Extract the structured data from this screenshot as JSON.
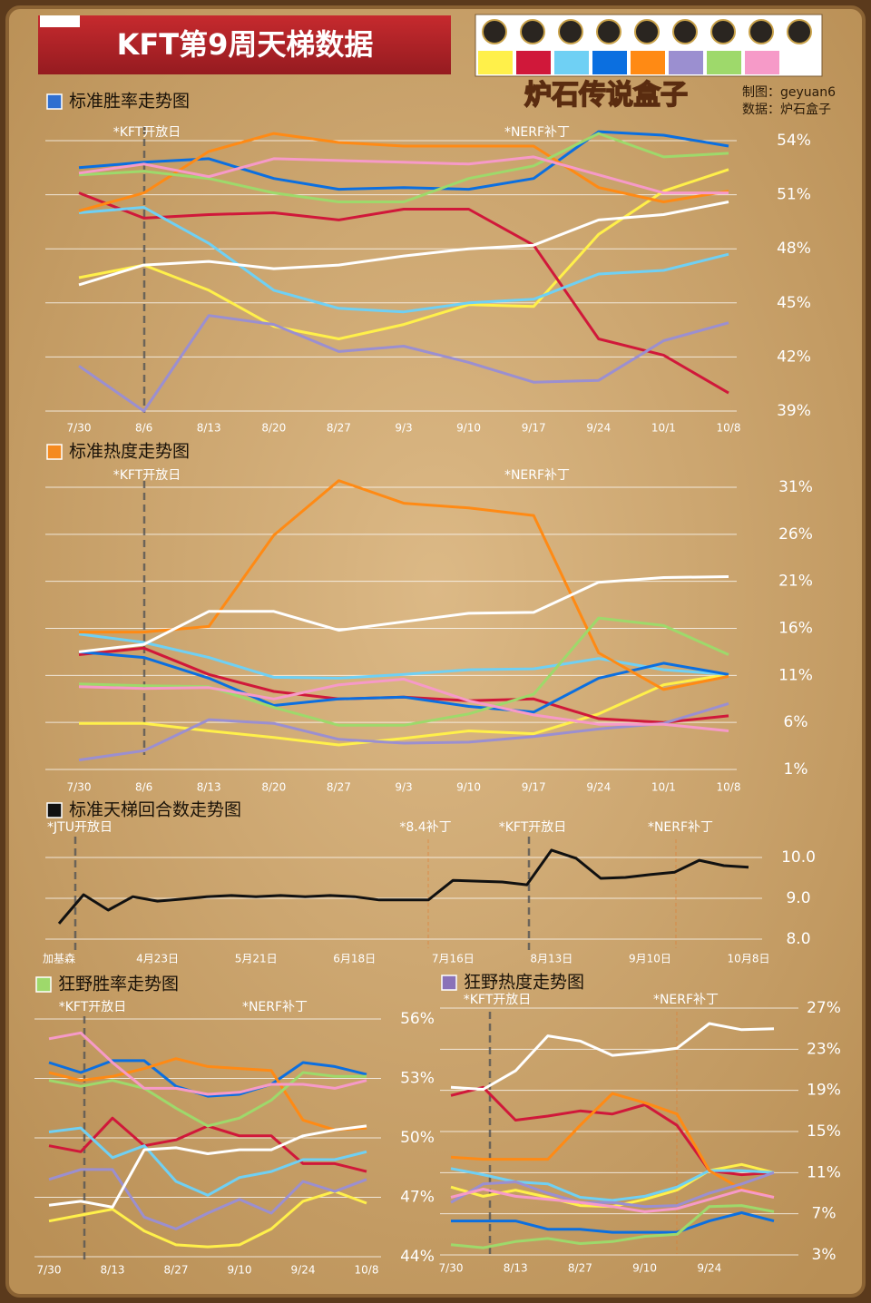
{
  "header": {
    "title": "KFT第9周天梯数据",
    "credits": [
      "制图：geyuan6",
      "数据：炉石盒子"
    ],
    "logo": "炉石传说盒子"
  },
  "chart_data": [
    {
      "type": "line",
      "title": "标准胜率走势图",
      "title_color": "#2f6fd0",
      "annotations": [
        "*KFT开放日",
        "*NERF补丁"
      ],
      "categories": [
        "7/30",
        "8/6",
        "8/13",
        "8/20",
        "8/27",
        "9/3",
        "9/10",
        "9/17",
        "9/24",
        "10/1",
        "10/8"
      ],
      "ylim": [
        39,
        54
      ],
      "yticks": [
        {
          "value": 39,
          "label": "39%"
        },
        {
          "value": 42,
          "label": "42%"
        },
        {
          "value": 45,
          "label": "45%"
        },
        {
          "value": 48,
          "label": "48%"
        },
        {
          "value": 51,
          "label": "51%"
        },
        {
          "value": 54,
          "label": "54%"
        }
      ],
      "grid": true,
      "series": [
        {
          "color": "#fff04a",
          "values": [
            46.4,
            47.1,
            45.7,
            43.7,
            43.0,
            43.8,
            44.9,
            44.8,
            48.8,
            51.2,
            52.4
          ]
        },
        {
          "color": "#d0183a",
          "values": [
            51.1,
            49.7,
            49.9,
            50.0,
            49.6,
            50.2,
            50.2,
            48.2,
            43.0,
            42.1,
            40.0
          ]
        },
        {
          "color": "#6fd0f4",
          "values": [
            50.0,
            50.3,
            48.3,
            45.7,
            44.7,
            44.5,
            45.0,
            45.2,
            46.6,
            46.8,
            47.7
          ]
        },
        {
          "color": "#0b6fe0",
          "values": [
            52.5,
            52.8,
            53.0,
            51.9,
            51.3,
            51.4,
            51.3,
            51.9,
            54.5,
            54.3,
            53.7
          ]
        },
        {
          "color": "#ff8a14",
          "values": [
            50.1,
            51.1,
            53.4,
            54.4,
            53.9,
            53.7,
            53.7,
            53.7,
            51.4,
            50.6,
            51.2
          ]
        },
        {
          "color": "#9b8fd0",
          "values": [
            41.5,
            39.0,
            44.3,
            43.8,
            42.3,
            42.6,
            41.7,
            40.6,
            40.7,
            42.9,
            43.9
          ]
        },
        {
          "color": "#9ed96b",
          "values": [
            52.1,
            52.3,
            51.9,
            51.1,
            50.6,
            50.6,
            51.9,
            52.6,
            54.4,
            53.1,
            53.3
          ]
        },
        {
          "color": "#f69ac8",
          "values": [
            52.2,
            52.7,
            52.0,
            53.0,
            52.9,
            52.8,
            52.7,
            53.1,
            52.1,
            51.1,
            51.1
          ]
        },
        {
          "color": "#ffffff",
          "values": [
            46.0,
            47.1,
            47.3,
            46.9,
            47.1,
            47.6,
            48.0,
            48.2,
            49.6,
            49.9,
            50.6
          ]
        }
      ]
    },
    {
      "type": "line",
      "title": "标准热度走势图",
      "title_color": "#f58a1f",
      "annotations": [
        "*KFT开放日",
        "*NERF补丁"
      ],
      "categories": [
        "7/30",
        "8/6",
        "8/13",
        "8/20",
        "8/27",
        "9/3",
        "9/10",
        "9/17",
        "9/24",
        "10/1",
        "10/8"
      ],
      "ylim": [
        1,
        31
      ],
      "yticks": [
        {
          "value": 1,
          "label": "1%"
        },
        {
          "value": 6,
          "label": "6%"
        },
        {
          "value": 11,
          "label": "11%"
        },
        {
          "value": 16,
          "label": "16%"
        },
        {
          "value": 21,
          "label": "21%"
        },
        {
          "value": 26,
          "label": "26%"
        },
        {
          "value": 31,
          "label": "31%"
        }
      ],
      "grid": true,
      "series": [
        {
          "color": "#fff04a",
          "values": [
            5.9,
            5.9,
            5.1,
            4.4,
            3.6,
            4.3,
            5.1,
            4.8,
            6.9,
            10.0,
            11.1
          ]
        },
        {
          "color": "#d0183a",
          "values": [
            13.2,
            13.9,
            11.1,
            9.3,
            8.5,
            8.7,
            8.3,
            8.5,
            6.4,
            6.0,
            6.7
          ]
        },
        {
          "color": "#6fd0f4",
          "values": [
            15.4,
            14.5,
            12.9,
            10.8,
            10.7,
            11.1,
            11.6,
            11.7,
            12.8,
            11.6,
            11.1
          ]
        },
        {
          "color": "#0b6fe0",
          "values": [
            13.5,
            12.9,
            10.7,
            7.8,
            8.5,
            8.7,
            7.7,
            7.1,
            10.7,
            12.3,
            11.1
          ]
        },
        {
          "color": "#ff8a14",
          "values": [
            15.6,
            15.6,
            16.2,
            25.9,
            31.7,
            29.3,
            28.8,
            28.0,
            13.4,
            9.5,
            10.9
          ]
        },
        {
          "color": "#9b8fd0",
          "values": [
            2.0,
            3.0,
            6.3,
            5.9,
            4.2,
            3.8,
            3.9,
            4.5,
            5.3,
            5.9,
            8.0
          ]
        },
        {
          "color": "#9ed96b",
          "values": [
            10.1,
            9.9,
            9.8,
            7.6,
            5.7,
            5.7,
            6.9,
            9.0,
            17.1,
            16.3,
            13.2
          ]
        },
        {
          "color": "#f69ac8",
          "values": [
            9.8,
            9.6,
            9.7,
            8.5,
            10.0,
            10.6,
            8.3,
            6.8,
            5.8,
            5.8,
            5.1
          ]
        },
        {
          "color": "#ffffff",
          "values": [
            13.5,
            14.3,
            17.8,
            17.8,
            15.8,
            16.7,
            17.6,
            17.7,
            20.9,
            21.4,
            21.5
          ]
        }
      ]
    },
    {
      "type": "line",
      "title": "标准天梯回合数走势图",
      "title_color": "#111111",
      "annotations": [
        "*JTU开放日",
        "*8.4补丁",
        "*KFT开放日",
        "*NERF补丁"
      ],
      "categories": [
        "加基森",
        null,
        null,
        null,
        "4月23日",
        null,
        null,
        null,
        "5月21日",
        null,
        null,
        null,
        "6月18日",
        null,
        null,
        null,
        "7月16日",
        null,
        null,
        null,
        "8月13日",
        null,
        null,
        null,
        "9月10日",
        null,
        null,
        null,
        "10月8日"
      ],
      "ylim": [
        8,
        10
      ],
      "yticks": [
        {
          "value": 8,
          "label": "8.0"
        },
        {
          "value": 9,
          "label": "9.0"
        },
        {
          "value": 10,
          "label": "10.0"
        }
      ],
      "grid": true,
      "series": [
        {
          "color": "#111111",
          "values": [
            8.38,
            9.09,
            8.71,
            9.04,
            8.93,
            8.98,
            9.04,
            9.07,
            9.04,
            9.07,
            9.04,
            9.07,
            9.04,
            8.96,
            8.96,
            8.96,
            9.44,
            9.42,
            9.4,
            9.33,
            10.18,
            9.98,
            9.49,
            9.51,
            9.58,
            9.64,
            9.93,
            9.8,
            9.76
          ]
        }
      ]
    },
    {
      "type": "line",
      "title": "狂野胜率走势图",
      "title_color": "#9ed96b",
      "annotations": [
        "*KFT开放日",
        "*NERF补丁"
      ],
      "categories": [
        "7/30",
        null,
        "8/13",
        null,
        "8/27",
        null,
        "9/10",
        null,
        "9/24",
        null,
        "10/8"
      ],
      "ylim": [
        44,
        56
      ],
      "yticks": [
        {
          "value": 44,
          "label": "44%"
        },
        {
          "value": 47,
          "label": "47%"
        },
        {
          "value": 50,
          "label": "50%"
        },
        {
          "value": 53,
          "label": "53%"
        },
        {
          "value": 56,
          "label": "56%"
        }
      ],
      "grid": true,
      "series": [
        {
          "color": "#fff04a",
          "values": [
            45.8,
            46.1,
            46.4,
            45.3,
            44.6,
            44.5,
            44.6,
            45.4,
            46.8,
            47.3,
            46.7
          ]
        },
        {
          "color": "#d0183a",
          "values": [
            49.6,
            49.3,
            51.0,
            49.6,
            49.9,
            50.6,
            50.1,
            50.1,
            48.7,
            48.7,
            48.3
          ]
        },
        {
          "color": "#6fd0f4",
          "values": [
            50.3,
            50.5,
            49.0,
            49.6,
            47.8,
            47.1,
            48.0,
            48.3,
            48.9,
            48.9,
            49.3
          ]
        },
        {
          "color": "#0b6fe0",
          "values": [
            53.8,
            53.3,
            53.9,
            53.9,
            52.6,
            52.1,
            52.2,
            52.7,
            53.8,
            53.6,
            53.2
          ]
        },
        {
          "color": "#ff8a14",
          "values": [
            53.3,
            52.9,
            53.1,
            53.5,
            54.0,
            53.6,
            53.5,
            53.4,
            50.9,
            50.4,
            50.5
          ]
        },
        {
          "color": "#9b8fd0",
          "values": [
            47.9,
            48.4,
            48.4,
            46.0,
            45.4,
            46.2,
            46.9,
            46.2,
            47.8,
            47.3,
            47.9
          ]
        },
        {
          "color": "#9ed96b",
          "values": [
            52.9,
            52.6,
            52.9,
            52.5,
            51.5,
            50.6,
            51.0,
            51.9,
            53.3,
            53.1,
            53.1
          ]
        },
        {
          "color": "#f69ac8",
          "values": [
            55.0,
            55.3,
            53.8,
            52.5,
            52.5,
            52.2,
            52.3,
            52.7,
            52.7,
            52.5,
            52.9
          ]
        },
        {
          "color": "#ffffff",
          "values": [
            46.6,
            46.8,
            46.5,
            49.4,
            49.5,
            49.2,
            49.4,
            49.4,
            50.1,
            50.4,
            50.6
          ]
        }
      ]
    },
    {
      "type": "line",
      "title": "狂野热度走势图",
      "title_color": "#8a72b8",
      "annotations": [
        "*KFT开放日",
        "*NERF补丁"
      ],
      "categories": [
        "7/30",
        null,
        "8/13",
        null,
        "8/27",
        null,
        "9/10",
        null,
        "9/24",
        null,
        null
      ],
      "ylim": [
        3,
        27
      ],
      "yticks": [
        {
          "value": 3,
          "label": "3%"
        },
        {
          "value": 7,
          "label": "7%"
        },
        {
          "value": 11,
          "label": "11%"
        },
        {
          "value": 15,
          "label": "15%"
        },
        {
          "value": 19,
          "label": "19%"
        },
        {
          "value": 23,
          "label": "23%"
        },
        {
          "value": 27,
          "label": "27%"
        }
      ],
      "grid": true,
      "series": [
        {
          "color": "#fff04a",
          "values": [
            9.6,
            8.7,
            9.3,
            8.6,
            7.8,
            7.7,
            8.4,
            9.3,
            11.2,
            11.8,
            11.0
          ]
        },
        {
          "color": "#d0183a",
          "values": [
            18.5,
            19.3,
            16.1,
            16.5,
            17.0,
            16.7,
            17.6,
            15.6,
            11.2,
            10.8,
            11.0
          ]
        },
        {
          "color": "#6fd0f4",
          "values": [
            11.4,
            10.8,
            10.1,
            9.9,
            8.6,
            8.3,
            8.7,
            9.6,
            11.2,
            11.2,
            11.0
          ]
        },
        {
          "color": "#0b6fe0",
          "values": [
            6.3,
            6.3,
            6.3,
            5.5,
            5.5,
            5.2,
            5.2,
            5.2,
            6.3,
            7.1,
            6.3
          ]
        },
        {
          "color": "#ff8a14",
          "values": [
            12.5,
            12.3,
            12.3,
            12.3,
            15.6,
            18.7,
            17.8,
            16.7,
            11.2,
            9.4,
            8.6
          ]
        },
        {
          "color": "#9b8fd0",
          "values": [
            8.1,
            9.9,
            10.1,
            9.0,
            8.1,
            8.1,
            7.7,
            7.8,
            9.0,
            9.9,
            11.0
          ]
        },
        {
          "color": "#9ed96b",
          "values": [
            4.0,
            3.7,
            4.3,
            4.6,
            4.1,
            4.3,
            4.8,
            5.0,
            7.7,
            7.8,
            7.2
          ]
        },
        {
          "color": "#f69ac8",
          "values": [
            8.6,
            9.4,
            8.7,
            8.4,
            8.1,
            7.7,
            7.2,
            7.5,
            8.4,
            9.3,
            8.6
          ]
        },
        {
          "color": "#ffffff",
          "values": [
            19.3,
            19.1,
            20.9,
            24.3,
            23.8,
            22.4,
            22.7,
            23.1,
            25.5,
            24.9,
            25.0
          ]
        }
      ]
    }
  ]
}
